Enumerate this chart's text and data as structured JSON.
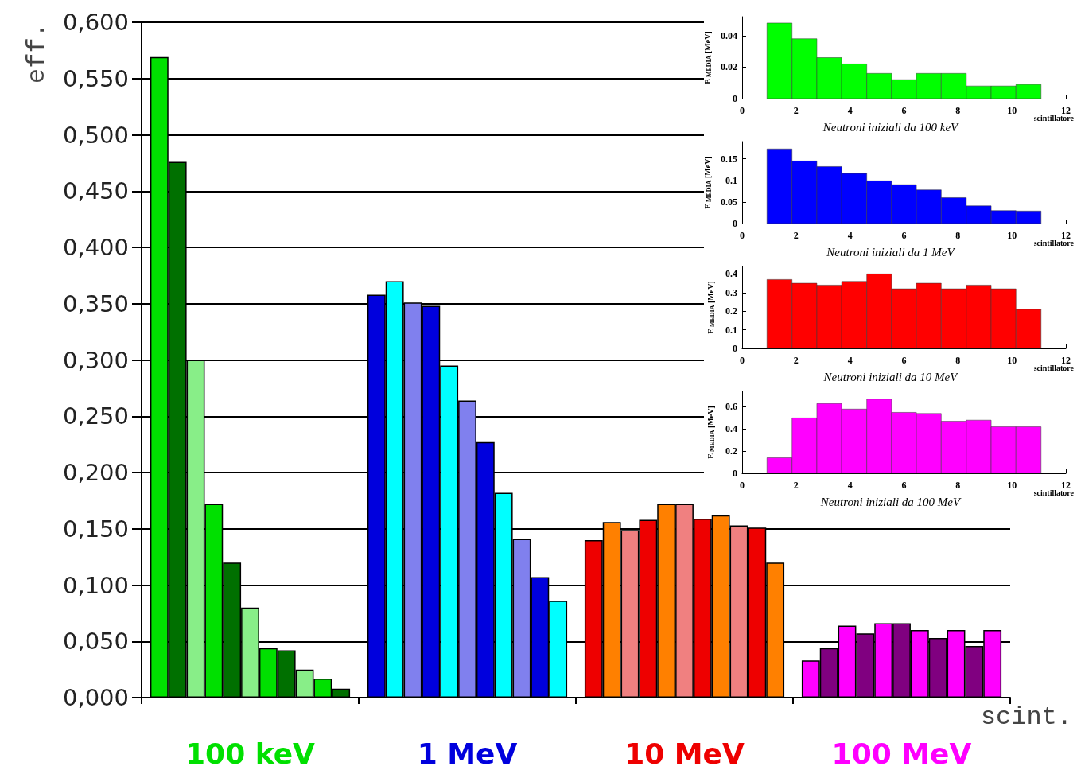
{
  "chart_data": [
    {
      "type": "bar",
      "categories": [
        "100 keV",
        "1 MeV",
        "10 MeV",
        "100 MeV"
      ],
      "xlabel": "scint.",
      "ylabel": "eff.",
      "ylim": [
        0,
        0.6
      ],
      "yticks": [
        {
          "value": 0,
          "label": "0,000"
        },
        {
          "value": 0.05,
          "label": "0,050"
        },
        {
          "value": 0.1,
          "label": "0,100"
        },
        {
          "value": 0.15,
          "label": "0,150"
        },
        {
          "value": 0.2,
          "label": "0,200"
        },
        {
          "value": 0.25,
          "label": "0,250"
        },
        {
          "value": 0.3,
          "label": "0,300"
        },
        {
          "value": 0.35,
          "label": "0,350"
        },
        {
          "value": 0.4,
          "label": "0,400"
        },
        {
          "value": 0.45,
          "label": "0,450"
        },
        {
          "value": 0.5,
          "label": "0,500"
        },
        {
          "value": 0.55,
          "label": "0,550"
        },
        {
          "value": 0.6,
          "label": "0,600"
        }
      ],
      "grid": "y",
      "series": [
        {
          "colors": [
            "#00e000",
            "#0000dd",
            "#ee0000",
            "#ff00ff"
          ],
          "values": [
            0.569,
            0.358,
            0.14,
            0.033
          ]
        },
        {
          "colors": [
            "#007000",
            "#00ffff",
            "#ff8000",
            "#800080"
          ],
          "values": [
            0.476,
            0.37,
            0.156,
            0.044
          ]
        },
        {
          "colors": [
            "#88ee88",
            "#8080ee",
            "#f08080",
            "#ff00ff"
          ],
          "values": [
            0.3,
            0.351,
            0.149,
            0.064
          ]
        },
        {
          "colors": [
            "#00e000",
            "#0000dd",
            "#ee0000",
            "#800080"
          ],
          "values": [
            0.172,
            0.348,
            0.158,
            0.057
          ]
        },
        {
          "colors": [
            "#007000",
            "#00ffff",
            "#ff8000",
            "#ff00ff"
          ],
          "values": [
            0.12,
            0.295,
            0.172,
            0.066
          ]
        },
        {
          "colors": [
            "#88ee88",
            "#8080ee",
            "#f08080",
            "#800080"
          ],
          "values": [
            0.08,
            0.264,
            0.172,
            0.066
          ]
        },
        {
          "colors": [
            "#00e000",
            "#0000dd",
            "#ee0000",
            "#ff00ff"
          ],
          "values": [
            0.044,
            0.227,
            0.159,
            0.06
          ]
        },
        {
          "colors": [
            "#007000",
            "#00ffff",
            "#ff8000",
            "#800080"
          ],
          "values": [
            0.042,
            0.182,
            0.162,
            0.053
          ]
        },
        {
          "colors": [
            "#88ee88",
            "#8080ee",
            "#f08080",
            "#ff00ff"
          ],
          "values": [
            0.025,
            0.141,
            0.153,
            0.06
          ]
        },
        {
          "colors": [
            "#00e000",
            "#0000dd",
            "#ee0000",
            "#800080"
          ],
          "values": [
            0.017,
            0.107,
            0.151,
            0.046
          ]
        },
        {
          "colors": [
            "#007000",
            "#00ffff",
            "#ff8000",
            "#ff00ff"
          ],
          "values": [
            0.008,
            0.086,
            0.12,
            0.06
          ]
        }
      ]
    },
    {
      "type": "histogram",
      "title": "Neutroni iniziali da 100 keV",
      "xlabel": "scintillatore",
      "ylabel": "E$_{MEDIA}$ [MeV]",
      "color": "#00ff00",
      "bins": [
        0.92,
        1.85,
        2.77,
        3.69,
        4.62,
        5.54,
        6.46,
        7.38,
        8.31,
        9.23,
        10.15,
        11.08
      ],
      "values": [
        0.048,
        0.038,
        0.026,
        0.022,
        0.016,
        0.012,
        0.016,
        0.016,
        0.008,
        0.008,
        0.009
      ],
      "xlim": [
        0,
        12
      ],
      "xticks": [
        0,
        2,
        4,
        6,
        8,
        10,
        12
      ],
      "ylim": [
        0,
        0.052
      ],
      "yticks": [
        0,
        0.02,
        0.04
      ]
    },
    {
      "type": "histogram",
      "title": "Neutroni iniziali da 1 MeV",
      "xlabel": "scintillatore",
      "ylabel": "E$_{MEDIA}$ [MeV]",
      "color": "#0000ff",
      "bins": [
        0.92,
        1.85,
        2.77,
        3.69,
        4.62,
        5.54,
        6.46,
        7.38,
        8.31,
        9.23,
        10.15,
        11.08
      ],
      "values": [
        0.173,
        0.145,
        0.132,
        0.116,
        0.099,
        0.09,
        0.078,
        0.06,
        0.041,
        0.03,
        0.029
      ],
      "xlim": [
        0,
        12
      ],
      "xticks": [
        0,
        2,
        4,
        6,
        8,
        10,
        12
      ],
      "ylim": [
        0,
        0.19
      ],
      "yticks": [
        0,
        0.05,
        0.1,
        0.15
      ]
    },
    {
      "type": "histogram",
      "title": "Neutroni iniziali da 10 MeV",
      "xlabel": "scintillatore",
      "ylabel": "E$_{MEDIA}$ [MeV]",
      "color": "#ff0000",
      "bins": [
        0.92,
        1.85,
        2.77,
        3.69,
        4.62,
        5.54,
        6.46,
        7.38,
        8.31,
        9.23,
        10.15,
        11.08
      ],
      "values": [
        0.37,
        0.35,
        0.34,
        0.36,
        0.4,
        0.32,
        0.35,
        0.32,
        0.34,
        0.32,
        0.21
      ],
      "xlim": [
        0,
        12
      ],
      "xticks": [
        0,
        2,
        4,
        6,
        8,
        10,
        12
      ],
      "ylim": [
        0,
        0.44
      ],
      "yticks": [
        0,
        0.1,
        0.2,
        0.3,
        0.4
      ]
    },
    {
      "type": "histogram",
      "title": "Neutroni iniziali da 100 MeV",
      "xlabel": "scintillatore",
      "ylabel": "E$_{MEDIA}$ [MeV]",
      "color": "#ff00ff",
      "bins": [
        0.92,
        1.85,
        2.77,
        3.69,
        4.62,
        5.54,
        6.46,
        7.38,
        8.31,
        9.23,
        10.15,
        11.08
      ],
      "values": [
        0.14,
        0.5,
        0.63,
        0.58,
        0.67,
        0.55,
        0.54,
        0.47,
        0.48,
        0.42,
        0.42
      ],
      "xlim": [
        0,
        12
      ],
      "xticks": [
        0,
        2,
        4,
        6,
        8,
        10,
        12
      ],
      "ylim": [
        0,
        0.74
      ],
      "yticks": [
        0,
        0.2,
        0.4,
        0.6
      ]
    }
  ]
}
